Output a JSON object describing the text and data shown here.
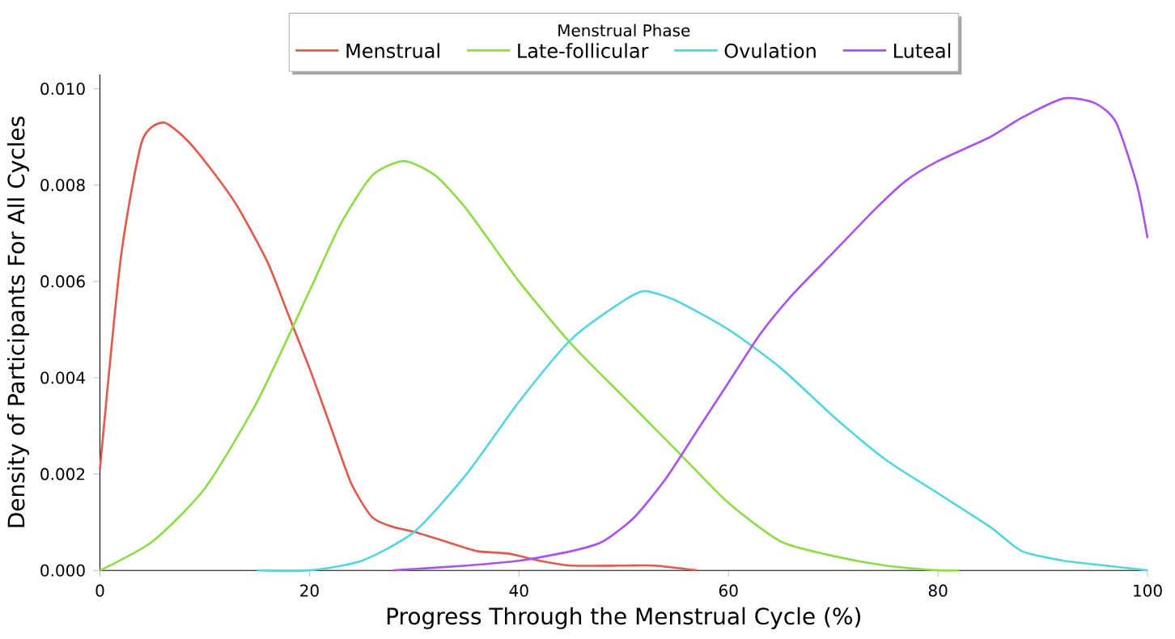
{
  "chart_data": {
    "type": "line",
    "xlabel": "Progress Through the Menstrual Cycle (%)",
    "ylabel": "Density of Participants For All Cycles",
    "legend_title": "Menstrual Phase",
    "legend": "top",
    "grid": false,
    "marker": "none",
    "line_style": "solid",
    "xlim": [
      0,
      100
    ],
    "xticks": [
      0,
      20,
      40,
      60,
      80,
      100
    ],
    "ylim": [
      0,
      0.0103
    ],
    "yticks": [
      {
        "value": 0,
        "label": "0.000"
      },
      {
        "value": 0.002,
        "label": "0.002"
      },
      {
        "value": 0.004,
        "label": "0.004"
      },
      {
        "value": 0.006,
        "label": "0.006"
      },
      {
        "value": 0.008,
        "label": "0.008"
      },
      {
        "value": 0.01,
        "label": "0.010"
      }
    ],
    "series": [
      {
        "name": "Menstrual",
        "color": "#e05a4e",
        "x": [
          0,
          2,
          4,
          6,
          8,
          10,
          13,
          16,
          18,
          20,
          22,
          24,
          26,
          28,
          30,
          33,
          36,
          39,
          42,
          45,
          50,
          53,
          57
        ],
        "values": [
          0.0021,
          0.0065,
          0.0089,
          0.0093,
          0.009,
          0.0085,
          0.0076,
          0.0064,
          0.0053,
          0.0042,
          0.003,
          0.0018,
          0.0011,
          0.0009,
          0.0008,
          0.0006,
          0.0004,
          0.00035,
          0.0002,
          0.0001,
          0.0001,
          0.0001,
          0
        ]
      },
      {
        "name": "Late-follicular",
        "color": "#8fdc4a",
        "x": [
          0,
          5,
          10,
          15,
          20,
          23,
          26,
          29,
          32,
          35,
          40,
          45,
          50,
          55,
          60,
          65,
          70,
          75,
          80,
          82
        ],
        "values": [
          0,
          0.0006,
          0.0017,
          0.0035,
          0.0058,
          0.0072,
          0.0082,
          0.0085,
          0.0082,
          0.0075,
          0.006,
          0.0047,
          0.0036,
          0.0025,
          0.0014,
          0.0006,
          0.0003,
          0.0001,
          0,
          0
        ]
      },
      {
        "name": "Ovulation",
        "color": "#55d6de",
        "x": [
          15,
          20,
          25,
          30,
          35,
          40,
          45,
          50,
          52,
          55,
          60,
          65,
          70,
          75,
          80,
          85,
          88,
          92,
          96,
          100
        ],
        "values": [
          0,
          0,
          0.0002,
          0.0008,
          0.002,
          0.0035,
          0.0048,
          0.0056,
          0.0058,
          0.0056,
          0.005,
          0.0042,
          0.0032,
          0.0023,
          0.0016,
          0.0009,
          0.0004,
          0.0002,
          0.0001,
          0
        ]
      },
      {
        "name": "Luteal",
        "color": "#a855e8",
        "x": [
          28,
          35,
          40,
          45,
          48,
          51,
          54,
          57,
          60,
          63,
          66,
          70,
          74,
          77,
          80,
          85,
          88,
          92,
          95,
          97,
          99,
          100
        ],
        "values": [
          0,
          0.0001,
          0.0002,
          0.0004,
          0.0006,
          0.0011,
          0.0019,
          0.0029,
          0.0039,
          0.0049,
          0.0057,
          0.0066,
          0.0075,
          0.0081,
          0.0085,
          0.009,
          0.0094,
          0.0098,
          0.0097,
          0.0093,
          0.008,
          0.0069
        ]
      }
    ]
  }
}
